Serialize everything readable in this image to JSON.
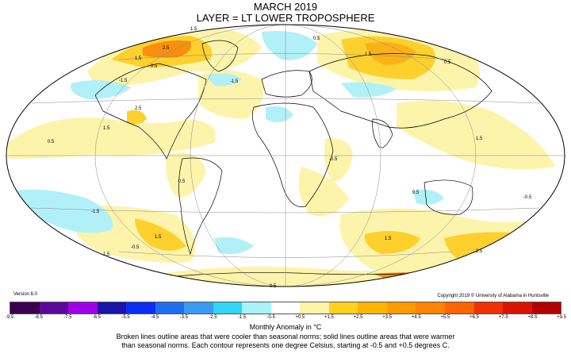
{
  "title": "MARCH 2019",
  "subtitle": "LAYER = LT LOWER TROPOSPHERE",
  "version": "Version 6.0",
  "copyright": "Copyright 2019 © University of Alabama in Huntsville",
  "units_label": "Monthly Anomaly in °C",
  "caption_line1": "Broken lines outline areas that were cooler than seasonal norms; solid lines outline areas that were warmer",
  "caption_line2": "than seasonal norms. Each contour represents one degree Celsius, starting at -0.5 and +0.5 degrees C.",
  "colorbar": {
    "ticks": [
      "-9.5",
      "-8.5",
      "-7.5",
      "-6.5",
      "-5.5",
      "-4.5",
      "-3.5",
      "-2.5",
      "-1.5",
      "-0.5",
      "+0.5",
      "+1.5",
      "+2.5",
      "+3.5",
      "+4.5",
      "+5.5",
      "+6.5",
      "+7.5",
      "+8.5",
      "+9.5"
    ],
    "colors": [
      "#3b0050",
      "#5a0a9a",
      "#a000e6",
      "#1a14a8",
      "#0a2ef0",
      "#1e6ef0",
      "#3a9af0",
      "#2fd6f5",
      "#a8f2fa",
      "#ffffff",
      "#fff3a8",
      "#ffd21e",
      "#ffb400",
      "#ff9a00",
      "#ff8200",
      "#ff6400",
      "#f03200",
      "#d81400",
      "#b40000"
    ]
  },
  "map_colors": {
    "background": "#ffffff",
    "cool_1": "#b2f0f8",
    "warm_1": "#fdf4ab",
    "warm_2": "#fdd02e",
    "warm_3": "#fbb216",
    "warm_4": "#f88f0f",
    "coast": "#000000",
    "grid": "#888888"
  },
  "map_labels": [
    {
      "text": "2.5"
    },
    {
      "text": "1.5"
    },
    {
      "text": "0.5"
    },
    {
      "text": "1.5"
    },
    {
      "text": "-1.5"
    },
    {
      "text": "-1.5"
    },
    {
      "text": "0.5"
    },
    {
      "text": "1.5"
    },
    {
      "text": "0.5"
    },
    {
      "text": "0.5"
    },
    {
      "text": "2.5"
    },
    {
      "text": "1.5"
    },
    {
      "text": "-1.5"
    },
    {
      "text": "1.5"
    },
    {
      "text": "-0.5"
    },
    {
      "text": "0.5"
    },
    {
      "text": "-0.5"
    },
    {
      "text": "1.5"
    },
    {
      "text": "2.5"
    },
    {
      "text": "0.5"
    },
    {
      "text": "-0.5"
    },
    {
      "text": "0.5"
    },
    {
      "text": "1.5"
    },
    {
      "text": "1.5"
    }
  ]
}
